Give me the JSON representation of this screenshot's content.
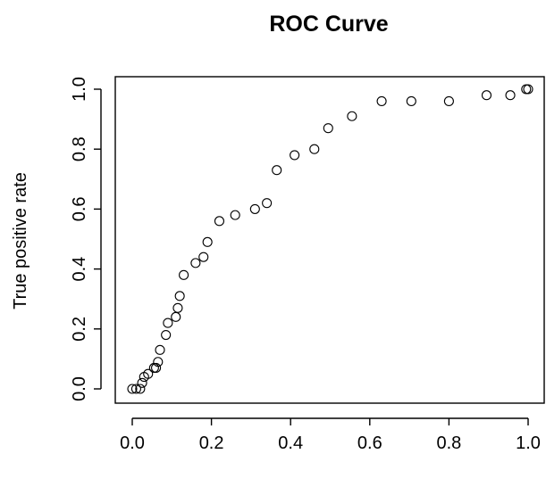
{
  "chart_data": {
    "type": "scatter",
    "title": "ROC Curve",
    "xlabel": "",
    "ylabel": "True positive rate",
    "xlim": [
      0,
      1
    ],
    "ylim": [
      0,
      1
    ],
    "grid": false,
    "x_ticks": [
      0.0,
      0.2,
      0.4,
      0.6,
      0.8,
      1.0
    ],
    "y_ticks": [
      0.0,
      0.2,
      0.4,
      0.6,
      0.8,
      1.0
    ],
    "x_tick_labels": [
      "0.0",
      "0.2",
      "0.4",
      "0.6",
      "0.8",
      "1.0"
    ],
    "y_tick_labels": [
      "0.0",
      "0.2",
      "0.4",
      "0.6",
      "0.8",
      "1.0"
    ],
    "x": [
      0.0,
      0.01,
      0.02,
      0.025,
      0.03,
      0.04,
      0.055,
      0.06,
      0.065,
      0.07,
      0.085,
      0.09,
      0.11,
      0.115,
      0.12,
      0.13,
      0.16,
      0.18,
      0.19,
      0.22,
      0.26,
      0.31,
      0.34,
      0.365,
      0.41,
      0.46,
      0.495,
      0.555,
      0.63,
      0.705,
      0.8,
      0.895,
      0.955,
      0.995,
      1.0
    ],
    "y": [
      0.0,
      0.0,
      0.0,
      0.02,
      0.04,
      0.05,
      0.07,
      0.07,
      0.09,
      0.13,
      0.18,
      0.22,
      0.24,
      0.27,
      0.31,
      0.38,
      0.42,
      0.44,
      0.49,
      0.56,
      0.58,
      0.6,
      0.62,
      0.73,
      0.78,
      0.8,
      0.87,
      0.91,
      0.96,
      0.96,
      0.96,
      0.98,
      0.98,
      1.0,
      1.0
    ]
  }
}
